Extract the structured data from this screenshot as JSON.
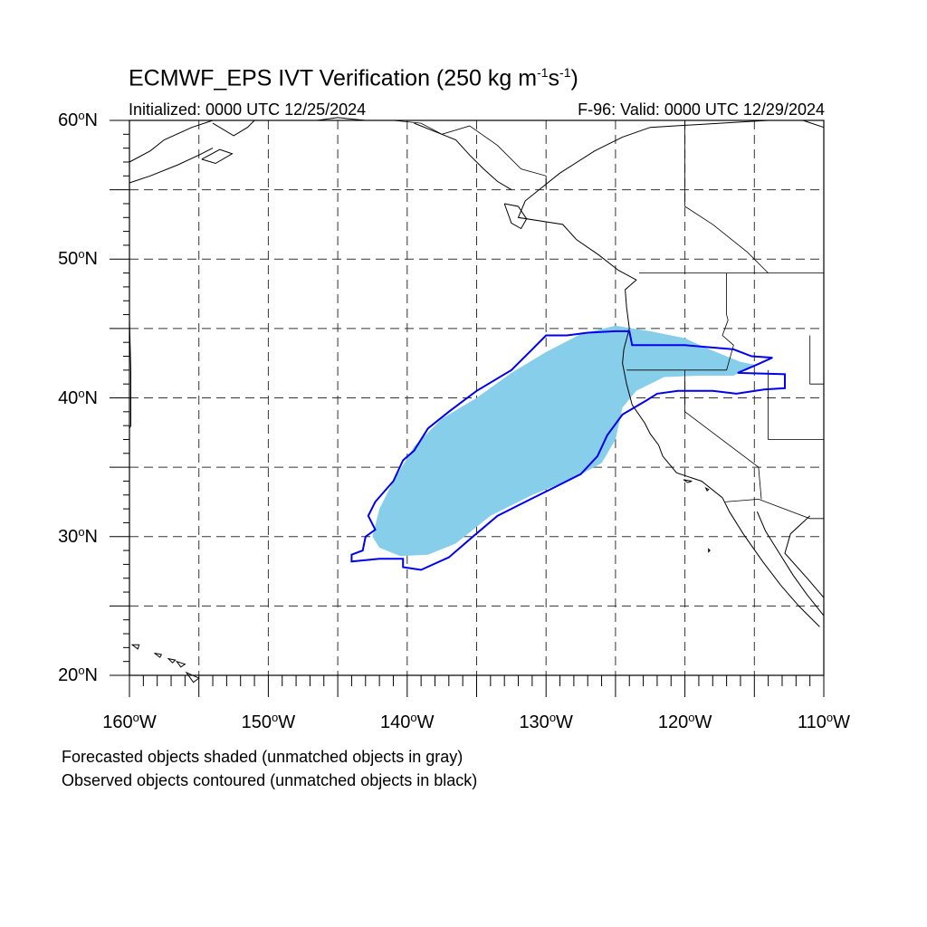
{
  "title": {
    "text": "ECMWF_EPS IVT Verification (250 kg m",
    "sup1": "-1",
    "mid": "s",
    "sup2": "-1",
    "end": ")"
  },
  "initialized": "Initialized: 0000 UTC 12/25/2024",
  "valid": "F-96: Valid: 0000 UTC 12/29/2024",
  "map": {
    "lon_range": [
      -160,
      -110
    ],
    "lat_range": [
      20,
      60
    ],
    "grid": "dashed every 5 degrees",
    "lat_ticks": [
      {
        "value": 60,
        "label": "60",
        "suffix": "N"
      },
      {
        "value": 50,
        "label": "50",
        "suffix": "N"
      },
      {
        "value": 40,
        "label": "40",
        "suffix": "N"
      },
      {
        "value": 30,
        "label": "30",
        "suffix": "N"
      },
      {
        "value": 20,
        "label": "20",
        "suffix": "N"
      }
    ],
    "lon_ticks": [
      {
        "value": -160,
        "label": "160",
        "suffix": "W"
      },
      {
        "value": -150,
        "label": "150",
        "suffix": "W"
      },
      {
        "value": -140,
        "label": "140",
        "suffix": "W"
      },
      {
        "value": -130,
        "label": "130",
        "suffix": "W"
      },
      {
        "value": -120,
        "label": "120",
        "suffix": "W"
      },
      {
        "value": -110,
        "label": "110",
        "suffix": "W"
      }
    ],
    "colors": {
      "forecast_fill": "#87ceeb",
      "observed_contour": "#0000ee",
      "coast": "#000000",
      "grid": "#333333"
    },
    "forecast_object": [
      [
        -142.5,
        30.0
      ],
      [
        -142.0,
        32.0
      ],
      [
        -141.0,
        34.0
      ],
      [
        -139.5,
        36.5
      ],
      [
        -137.5,
        38.5
      ],
      [
        -135.0,
        40.0
      ],
      [
        -132.5,
        41.8
      ],
      [
        -130.0,
        43.3
      ],
      [
        -127.5,
        44.6
      ],
      [
        -125.0,
        45.2
      ],
      [
        -122.5,
        44.8
      ],
      [
        -120.0,
        44.3
      ],
      [
        -118.5,
        43.6
      ],
      [
        -116.0,
        42.6
      ],
      [
        -115.0,
        42.4
      ],
      [
        -116.5,
        41.6
      ],
      [
        -119.0,
        41.6
      ],
      [
        -121.5,
        41.5
      ],
      [
        -123.5,
        40.5
      ],
      [
        -124.5,
        39.3
      ],
      [
        -125.0,
        37.0
      ],
      [
        -126.0,
        35.3
      ],
      [
        -128.0,
        34.2
      ],
      [
        -131.0,
        33.0
      ],
      [
        -134.0,
        31.5
      ],
      [
        -136.5,
        29.5
      ],
      [
        -138.5,
        28.7
      ],
      [
        -140.5,
        28.6
      ],
      [
        -142.0,
        29.2
      ]
    ],
    "observed_object": [
      [
        -144.0,
        28.7
      ],
      [
        -143.2,
        29.0
      ],
      [
        -143.0,
        30.0
      ],
      [
        -142.3,
        30.5
      ],
      [
        -142.8,
        31.5
      ],
      [
        -142.3,
        32.5
      ],
      [
        -141.0,
        34.0
      ],
      [
        -140.3,
        35.5
      ],
      [
        -139.5,
        36.2
      ],
      [
        -138.5,
        37.8
      ],
      [
        -137.0,
        39.0
      ],
      [
        -135.0,
        40.5
      ],
      [
        -132.5,
        42.0
      ],
      [
        -131.0,
        43.5
      ],
      [
        -130.0,
        44.5
      ],
      [
        -128.5,
        44.5
      ],
      [
        -127.0,
        44.7
      ],
      [
        -125.0,
        44.8
      ],
      [
        -124.0,
        44.8
      ],
      [
        -123.8,
        43.8
      ],
      [
        -120.0,
        43.8
      ],
      [
        -116.5,
        43.5
      ],
      [
        -115.2,
        43.0
      ],
      [
        -113.7,
        42.9
      ],
      [
        -114.8,
        42.4
      ],
      [
        -116.2,
        41.8
      ],
      [
        -112.8,
        41.7
      ],
      [
        -112.8,
        40.7
      ],
      [
        -114.3,
        40.6
      ],
      [
        -116.3,
        40.3
      ],
      [
        -118.0,
        40.5
      ],
      [
        -120.5,
        40.5
      ],
      [
        -122.0,
        40.3
      ],
      [
        -122.8,
        39.8
      ],
      [
        -124.5,
        38.8
      ],
      [
        -125.6,
        37.3
      ],
      [
        -126.3,
        35.8
      ],
      [
        -127.5,
        34.5
      ],
      [
        -129.5,
        33.5
      ],
      [
        -131.5,
        32.5
      ],
      [
        -133.5,
        31.5
      ],
      [
        -135.5,
        29.8
      ],
      [
        -137.0,
        28.5
      ],
      [
        -139.0,
        27.6
      ],
      [
        -140.3,
        27.8
      ],
      [
        -140.3,
        28.4
      ],
      [
        -142.0,
        28.4
      ],
      [
        -143.0,
        28.3
      ],
      [
        -144.0,
        28.2
      ]
    ],
    "coastlines": [
      [
        [
          -114.0,
          60.0
        ],
        [
          -122.5,
          59.5
        ],
        [
          -124.5,
          58.8
        ],
        [
          -126.5,
          57.8
        ],
        [
          -129.0,
          56.2
        ],
        [
          -130.5,
          55.0
        ],
        [
          -131.5,
          54.2
        ],
        [
          -132.0,
          53.0
        ],
        [
          -128.8,
          52.5
        ],
        [
          -127.8,
          51.4
        ],
        [
          -126.2,
          50.3
        ],
        [
          -124.8,
          49.2
        ],
        [
          -123.5,
          48.5
        ],
        [
          -124.3,
          47.8
        ],
        [
          -124.2,
          46.5
        ],
        [
          -124.0,
          45.0
        ],
        [
          -124.4,
          43.5
        ],
        [
          -124.5,
          42.5
        ],
        [
          -124.2,
          41.0
        ],
        [
          -123.8,
          39.5
        ],
        [
          -122.9,
          38.2
        ],
        [
          -122.5,
          37.4
        ],
        [
          -121.9,
          36.6
        ],
        [
          -121.6,
          35.8
        ],
        [
          -120.6,
          34.6
        ],
        [
          -118.8,
          34.0
        ],
        [
          -117.3,
          32.8
        ],
        [
          -116.8,
          31.8
        ],
        [
          -115.8,
          30.2
        ],
        [
          -114.4,
          28.2
        ],
        [
          -113.1,
          26.5
        ],
        [
          -111.8,
          25.0
        ],
        [
          -110.3,
          23.5
        ]
      ],
      [
        [
          -111.0,
          31.5
        ],
        [
          -112.4,
          30.2
        ],
        [
          -112.8,
          28.8
        ],
        [
          -111.2,
          27.0
        ],
        [
          -110.0,
          25.6
        ]
      ],
      [
        [
          -114.8,
          31.8
        ],
        [
          -114.2,
          30.4
        ],
        [
          -113.2,
          28.8
        ],
        [
          -112.2,
          27.2
        ],
        [
          -111.2,
          25.8
        ],
        [
          -110.0,
          24.3
        ]
      ],
      [
        [
          -133.0,
          54.0
        ],
        [
          -132.0,
          53.8
        ],
        [
          -131.4,
          52.9
        ],
        [
          -131.8,
          52.2
        ],
        [
          -132.5,
          52.6
        ],
        [
          -133.0,
          54.0
        ]
      ],
      [
        [
          -160.0,
          57.0
        ],
        [
          -158.5,
          57.8
        ],
        [
          -157.5,
          58.6
        ],
        [
          -155.5,
          59.5
        ],
        [
          -154.0,
          60.0
        ]
      ],
      [
        [
          -160.0,
          55.5
        ],
        [
          -158.5,
          56.0
        ],
        [
          -156.5,
          56.8
        ],
        [
          -155.0,
          57.5
        ],
        [
          -154.0,
          58.0
        ]
      ],
      [
        [
          -154.8,
          57.2
        ],
        [
          -153.5,
          57.9
        ],
        [
          -152.6,
          57.6
        ],
        [
          -153.8,
          56.9
        ],
        [
          -154.8,
          57.2
        ]
      ],
      [
        [
          -154.0,
          59.8
        ],
        [
          -152.5,
          58.9
        ],
        [
          -151.5,
          59.5
        ],
        [
          -151.0,
          60.0
        ]
      ],
      [
        [
          -146.5,
          60.0
        ],
        [
          -145.0,
          60.2
        ],
        [
          -143.0,
          60.0
        ]
      ],
      [
        [
          -139.5,
          59.8
        ],
        [
          -138.0,
          59.2
        ],
        [
          -136.5,
          58.6
        ],
        [
          -135.5,
          57.5
        ],
        [
          -134.5,
          56.5
        ],
        [
          -133.5,
          55.6
        ],
        [
          -132.5,
          55.0
        ]
      ],
      [
        [
          -111.5,
          60.0
        ],
        [
          -110.0,
          59.5
        ]
      ],
      [
        [
          -160.0,
          45.6
        ],
        [
          -159.9,
          42.0
        ],
        [
          -159.9,
          38.0
        ],
        [
          -160.0,
          37.8
        ]
      ]
    ],
    "islands": [
      [
        [
          -159.8,
          22.2
        ],
        [
          -159.3,
          22.2
        ],
        [
          -159.4,
          21.9
        ],
        [
          -159.8,
          22.2
        ]
      ],
      [
        [
          -158.2,
          21.6
        ],
        [
          -157.7,
          21.5
        ],
        [
          -157.8,
          21.3
        ],
        [
          -158.2,
          21.6
        ]
      ],
      [
        [
          -157.2,
          21.2
        ],
        [
          -156.7,
          21.1
        ],
        [
          -156.9,
          20.9
        ],
        [
          -157.2,
          21.2
        ]
      ],
      [
        [
          -156.6,
          21.0
        ],
        [
          -156.0,
          20.8
        ],
        [
          -156.3,
          20.6
        ],
        [
          -156.6,
          21.0
        ]
      ],
      [
        [
          -155.9,
          20.2
        ],
        [
          -155.0,
          19.8
        ],
        [
          -155.4,
          19.5
        ],
        [
          -155.9,
          20.2
        ]
      ],
      [
        [
          -118.5,
          33.5
        ],
        [
          -118.3,
          33.4
        ],
        [
          -118.4,
          33.3
        ],
        [
          -118.5,
          33.5
        ]
      ],
      [
        [
          -120.1,
          34.1
        ],
        [
          -119.5,
          34.0
        ],
        [
          -119.8,
          33.9
        ],
        [
          -120.1,
          34.1
        ]
      ],
      [
        [
          -118.3,
          29.1
        ],
        [
          -118.2,
          29.0
        ],
        [
          -118.3,
          28.9
        ],
        [
          -118.3,
          29.1
        ]
      ]
    ],
    "borders": [
      [
        [
          -123.3,
          49.0
        ],
        [
          -110.0,
          49.0
        ]
      ],
      [
        [
          -117.0,
          49.0
        ],
        [
          -117.0,
          46.0
        ],
        [
          -116.9,
          45.6
        ],
        [
          -117.3,
          44.5
        ],
        [
          -116.5,
          43.8
        ],
        [
          -117.0,
          42.0
        ],
        [
          -124.2,
          42.0
        ]
      ],
      [
        [
          -111.0,
          44.5
        ],
        [
          -111.0,
          41.0
        ],
        [
          -110.0,
          41.0
        ]
      ],
      [
        [
          -114.0,
          42.0
        ],
        [
          -114.0,
          37.0
        ],
        [
          -110.0,
          37.0
        ]
      ],
      [
        [
          -120.0,
          42.0
        ],
        [
          -120.0,
          39.0
        ],
        [
          -114.7,
          35.0
        ],
        [
          -114.5,
          32.7
        ]
      ],
      [
        [
          -117.1,
          32.5
        ],
        [
          -114.7,
          32.7
        ],
        [
          -111.0,
          31.3
        ],
        [
          -110.0,
          31.3
        ]
      ],
      [
        [
          -141.0,
          60.0
        ],
        [
          -139.0,
          59.8
        ],
        [
          -137.5,
          59.0
        ],
        [
          -135.5,
          59.6
        ],
        [
          -133.5,
          58.2
        ],
        [
          -131.8,
          56.5
        ],
        [
          -130.0,
          56.0
        ],
        [
          -130.0,
          55.0
        ]
      ],
      [
        [
          -125.0,
          60.0
        ],
        [
          -120.0,
          60.0
        ]
      ],
      [
        [
          -120.0,
          60.0
        ],
        [
          -120.0,
          53.8
        ],
        [
          -118.0,
          52.5
        ],
        [
          -115.5,
          50.5
        ],
        [
          -114.0,
          49.0
        ]
      ],
      [
        [
          -110.0,
          60.0
        ],
        [
          -110.0,
          49.0
        ]
      ]
    ]
  },
  "notes": [
    "Forecasted objects shaded (unmatched objects in gray)",
    "Observed objects contoured (unmatched objects in black)"
  ]
}
